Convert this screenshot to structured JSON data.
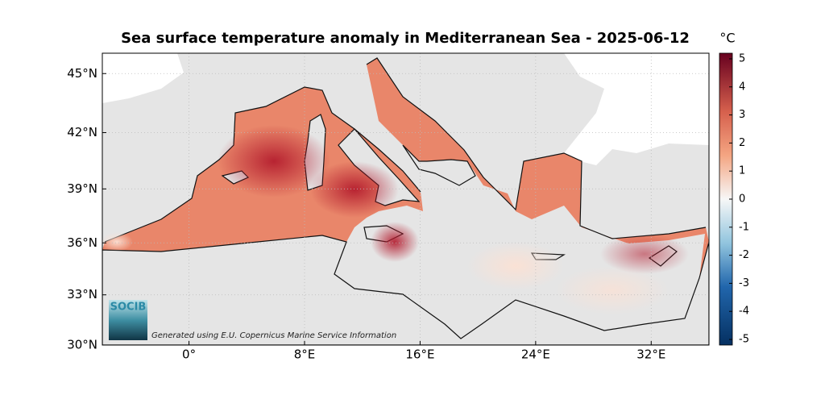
{
  "chart_data": {
    "type": "map",
    "title": "Sea surface temperature anomaly in Mediterranean Sea - 2025-06-12",
    "colorbar_label": "°C",
    "colorbar_lim": [
      -5.2,
      5.2
    ],
    "colorbar_ticks": [
      -5,
      -4,
      -3,
      -2,
      -1,
      0,
      1,
      2,
      3,
      4,
      5
    ],
    "yticks": [
      {
        "value": 30,
        "label": "30°N"
      },
      {
        "value": 33,
        "label": "33°N"
      },
      {
        "value": 36,
        "label": "36°N"
      },
      {
        "value": 39,
        "label": "39°N"
      },
      {
        "value": 42,
        "label": "42°N"
      },
      {
        "value": 45,
        "label": "45°N"
      }
    ],
    "xticks": [
      {
        "value": 0,
        "label": "0°"
      },
      {
        "value": 8,
        "label": "8°E"
      },
      {
        "value": 16,
        "label": "16°E"
      },
      {
        "value": 24,
        "label": "24°E"
      },
      {
        "value": 32,
        "label": "32°E"
      }
    ],
    "xlim": [
      -6,
      36
    ],
    "ylim": [
      30,
      46
    ],
    "logo": "SOCIB",
    "credit": "Generated using E.U. Copernicus Marine Service Information"
  }
}
